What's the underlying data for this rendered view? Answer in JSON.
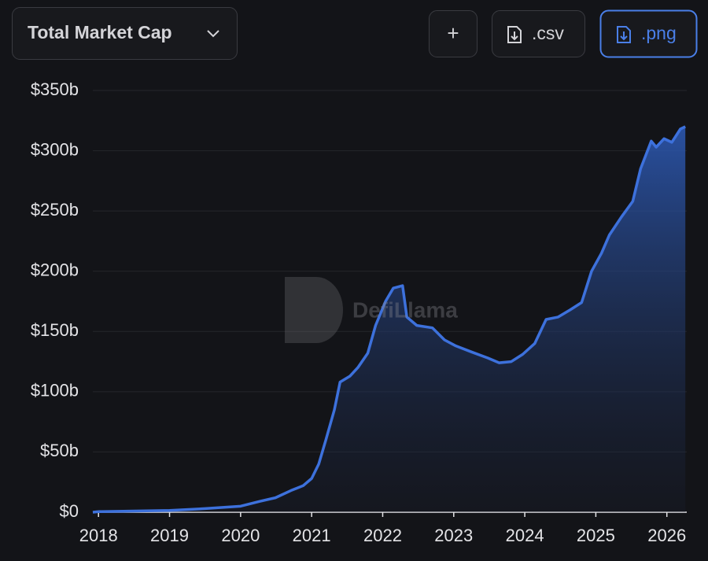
{
  "controls": {
    "dropdown": "Total Market Cap",
    "add": "+",
    "csv": ".csv",
    "png": ".png"
  },
  "watermark": "DefiLlama",
  "chart_data": {
    "type": "area",
    "color": "#3d71dc",
    "grid": true,
    "xlim": [
      2017.92,
      2026.28
    ],
    "xticks": [
      2018,
      2019,
      2020,
      2021,
      2022,
      2023,
      2024,
      2025,
      2026
    ],
    "ylim": [
      0,
      350
    ],
    "yticks": [
      {
        "value": 0,
        "label": "$0"
      },
      {
        "value": 50,
        "label": "$50b"
      },
      {
        "value": 100,
        "label": "$100b"
      },
      {
        "value": 150,
        "label": "$150b"
      },
      {
        "value": 200,
        "label": "$200b"
      },
      {
        "value": 250,
        "label": "$250b"
      },
      {
        "value": 300,
        "label": "$300b"
      },
      {
        "value": 350,
        "label": "$350b"
      }
    ],
    "x": [
      2017.92,
      2018.0,
      2019.0,
      2019.5,
      2020.0,
      2020.27,
      2020.49,
      2020.71,
      2020.88,
      2021.0,
      2021.1,
      2021.2,
      2021.32,
      2021.4,
      2021.54,
      2021.65,
      2021.79,
      2021.9,
      2022.04,
      2022.15,
      2022.28,
      2022.34,
      2022.48,
      2022.7,
      2022.87,
      2023.03,
      2023.25,
      2023.48,
      2023.64,
      2023.81,
      2023.97,
      2024.14,
      2024.3,
      2024.47,
      2024.64,
      2024.8,
      2024.94,
      2025.08,
      2025.19,
      2025.36,
      2025.52,
      2025.63,
      2025.78,
      2025.85,
      2025.96,
      2026.07,
      2026.19,
      2026.26
    ],
    "values": [
      0,
      0.5,
      1.5,
      3,
      5,
      9,
      12,
      18,
      22,
      28,
      40,
      60,
      85,
      108,
      113,
      120,
      132,
      155,
      175,
      186,
      188,
      162,
      155,
      153,
      143,
      138,
      133,
      128,
      124,
      125,
      131,
      140,
      160,
      162,
      168,
      174,
      200,
      215,
      230,
      245,
      258,
      285,
      308,
      303,
      310,
      307,
      318,
      320
    ]
  }
}
